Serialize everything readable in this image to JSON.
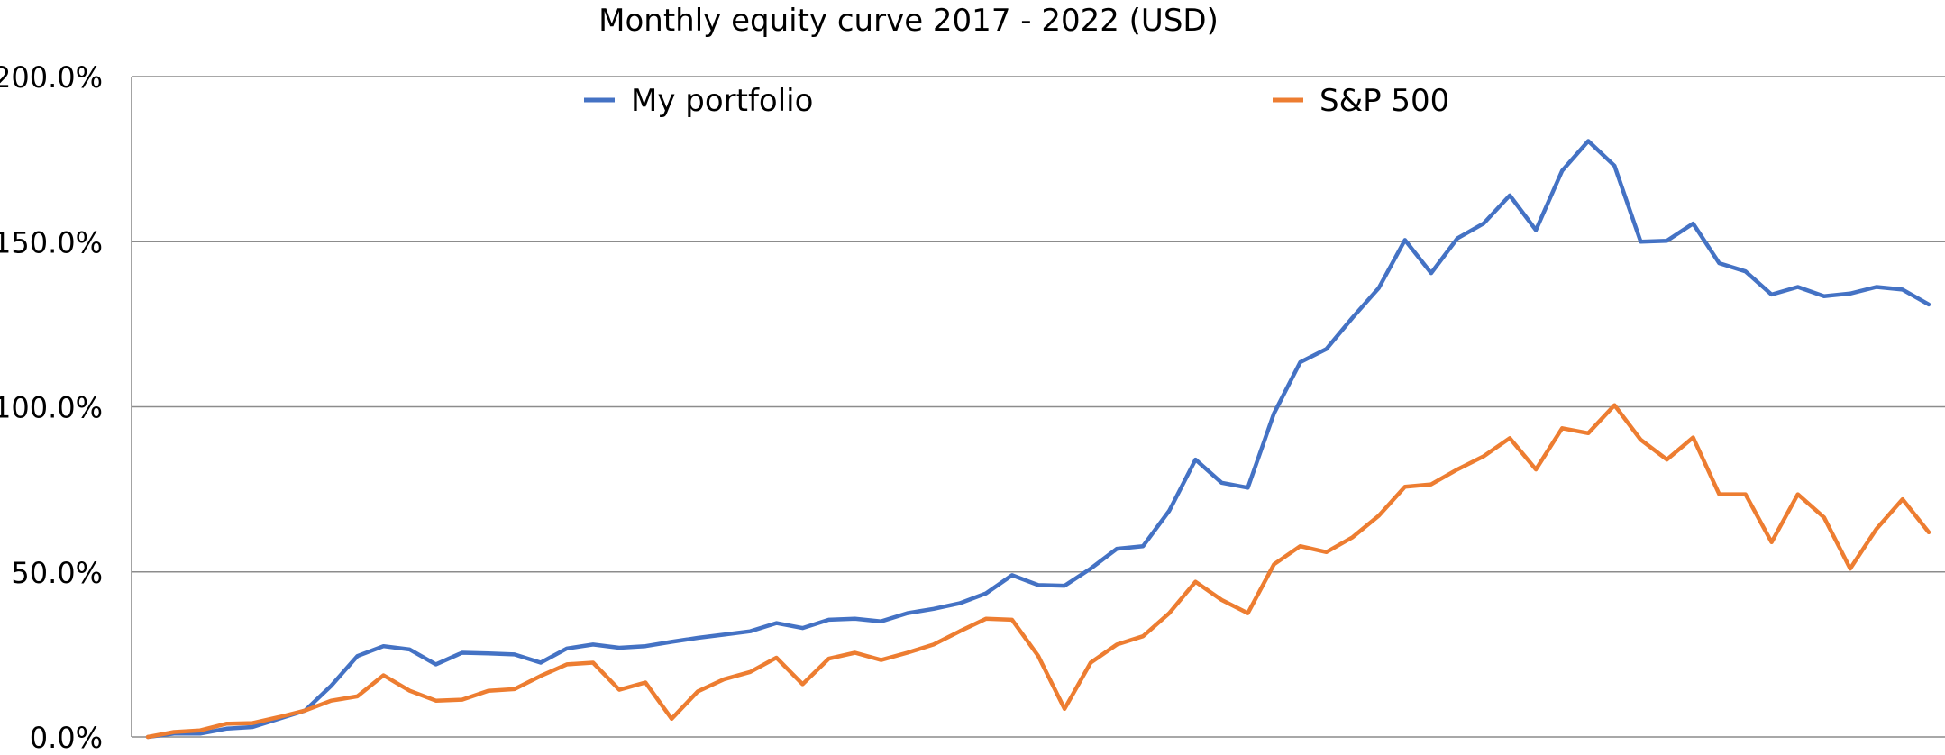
{
  "chart_data": {
    "type": "line",
    "title": "Monthly equity curve 2017 - 2022 (USD)",
    "xlabel": "",
    "ylabel": "",
    "ylim": [
      0,
      200
    ],
    "y_ticks": [
      {
        "value": 0,
        "label": "0.0%"
      },
      {
        "value": 50,
        "label": "50.0%"
      },
      {
        "value": 100,
        "label": "100.0%"
      },
      {
        "value": 150,
        "label": "150.0%"
      },
      {
        "value": 200,
        "label": "200.0%"
      }
    ],
    "grid": true,
    "legend_position": "top",
    "series": [
      {
        "name": "My portfolio",
        "color": "#4472C4",
        "values": [
          0,
          1,
          1,
          2.5,
          3,
          5.5,
          8,
          15.5,
          24.5,
          27.5,
          26.5,
          22,
          25.5,
          25.3,
          25,
          22.5,
          26.8,
          28,
          27,
          27.5,
          28.8,
          30,
          31,
          32,
          34.5,
          33,
          35.5,
          35.8,
          35,
          37.5,
          38.8,
          40.5,
          43.5,
          49,
          46,
          45.8,
          51,
          57,
          57.8,
          68.5,
          84,
          77,
          75.5,
          98,
          113.5,
          117.5,
          127,
          136,
          150.5,
          140.5,
          151,
          155.5,
          164,
          153.5,
          171.5,
          180.5,
          173,
          150,
          150.3,
          155.5,
          143.5,
          141,
          134,
          136.3,
          133.5,
          134.3,
          136.3,
          135.5,
          131
        ]
      },
      {
        "name": "S&P 500",
        "color": "#ED7D31",
        "values": [
          0,
          1.5,
          2,
          4,
          4.2,
          6,
          8,
          11,
          12.3,
          18.7,
          14,
          11,
          11.3,
          14,
          14.5,
          18.5,
          22,
          22.5,
          14.3,
          16.5,
          5.5,
          13.8,
          17.5,
          19.7,
          24,
          16,
          23.7,
          25.5,
          23.3,
          25.5,
          28,
          32,
          35.8,
          35.5,
          24.5,
          8.5,
          22.5,
          28,
          30.5,
          37.5,
          47,
          41.5,
          37.5,
          52.3,
          57.8,
          56,
          60.5,
          67,
          75.8,
          76.5,
          81,
          85,
          90.5,
          81,
          93.5,
          92,
          100.5,
          90,
          84,
          90.7,
          73.5,
          73.5,
          59,
          73.5,
          66.5,
          51,
          63,
          72,
          62
        ]
      }
    ]
  }
}
